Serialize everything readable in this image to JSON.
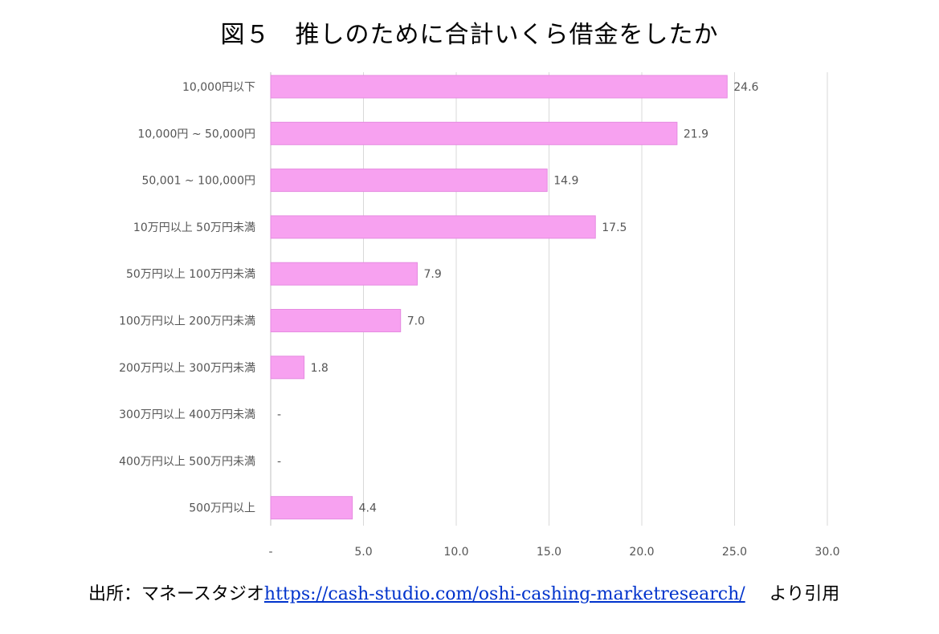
{
  "title": "図５　推しのために合計いくら借金をしたか",
  "source": {
    "prefix": "出所：マネースタジオ",
    "url": "https://cash-studio.com/oshi-cashing-marketresearch/",
    "suffix": "より引用"
  },
  "colors": {
    "bar": "#f7a1f0",
    "bar_edge": "#e58be0",
    "grid": "#d9d9d9",
    "label": "#555555"
  },
  "chart_data": {
    "type": "bar",
    "orientation": "horizontal",
    "categories": [
      "10,000円以下",
      "10,000円 ~ 50,000円",
      "50,001 ~ 100,000円",
      "10万円以上 50万円未満",
      "50万円以上 100万円未満",
      "100万円以上 200万円未満",
      "200万円以上 300万円未満",
      "300万円以上 400万円未満",
      "400万円以上 500万円未満",
      "500万円以上"
    ],
    "values": [
      24.6,
      21.9,
      14.9,
      17.5,
      7.9,
      7.0,
      1.8,
      null,
      null,
      4.4
    ],
    "data_labels": [
      "24.6",
      "21.9",
      "14.9",
      "17.5",
      "7.9",
      "7.0",
      "1.8",
      "-",
      "-",
      "4.4"
    ],
    "xlim": [
      0,
      30
    ],
    "xticks": [
      0,
      5,
      10,
      15,
      20,
      25,
      30
    ],
    "xtick_labels": [
      "-",
      "5.0",
      "10.0",
      "15.0",
      "20.0",
      "25.0",
      "30.0"
    ],
    "grid": true,
    "legend": "none"
  }
}
